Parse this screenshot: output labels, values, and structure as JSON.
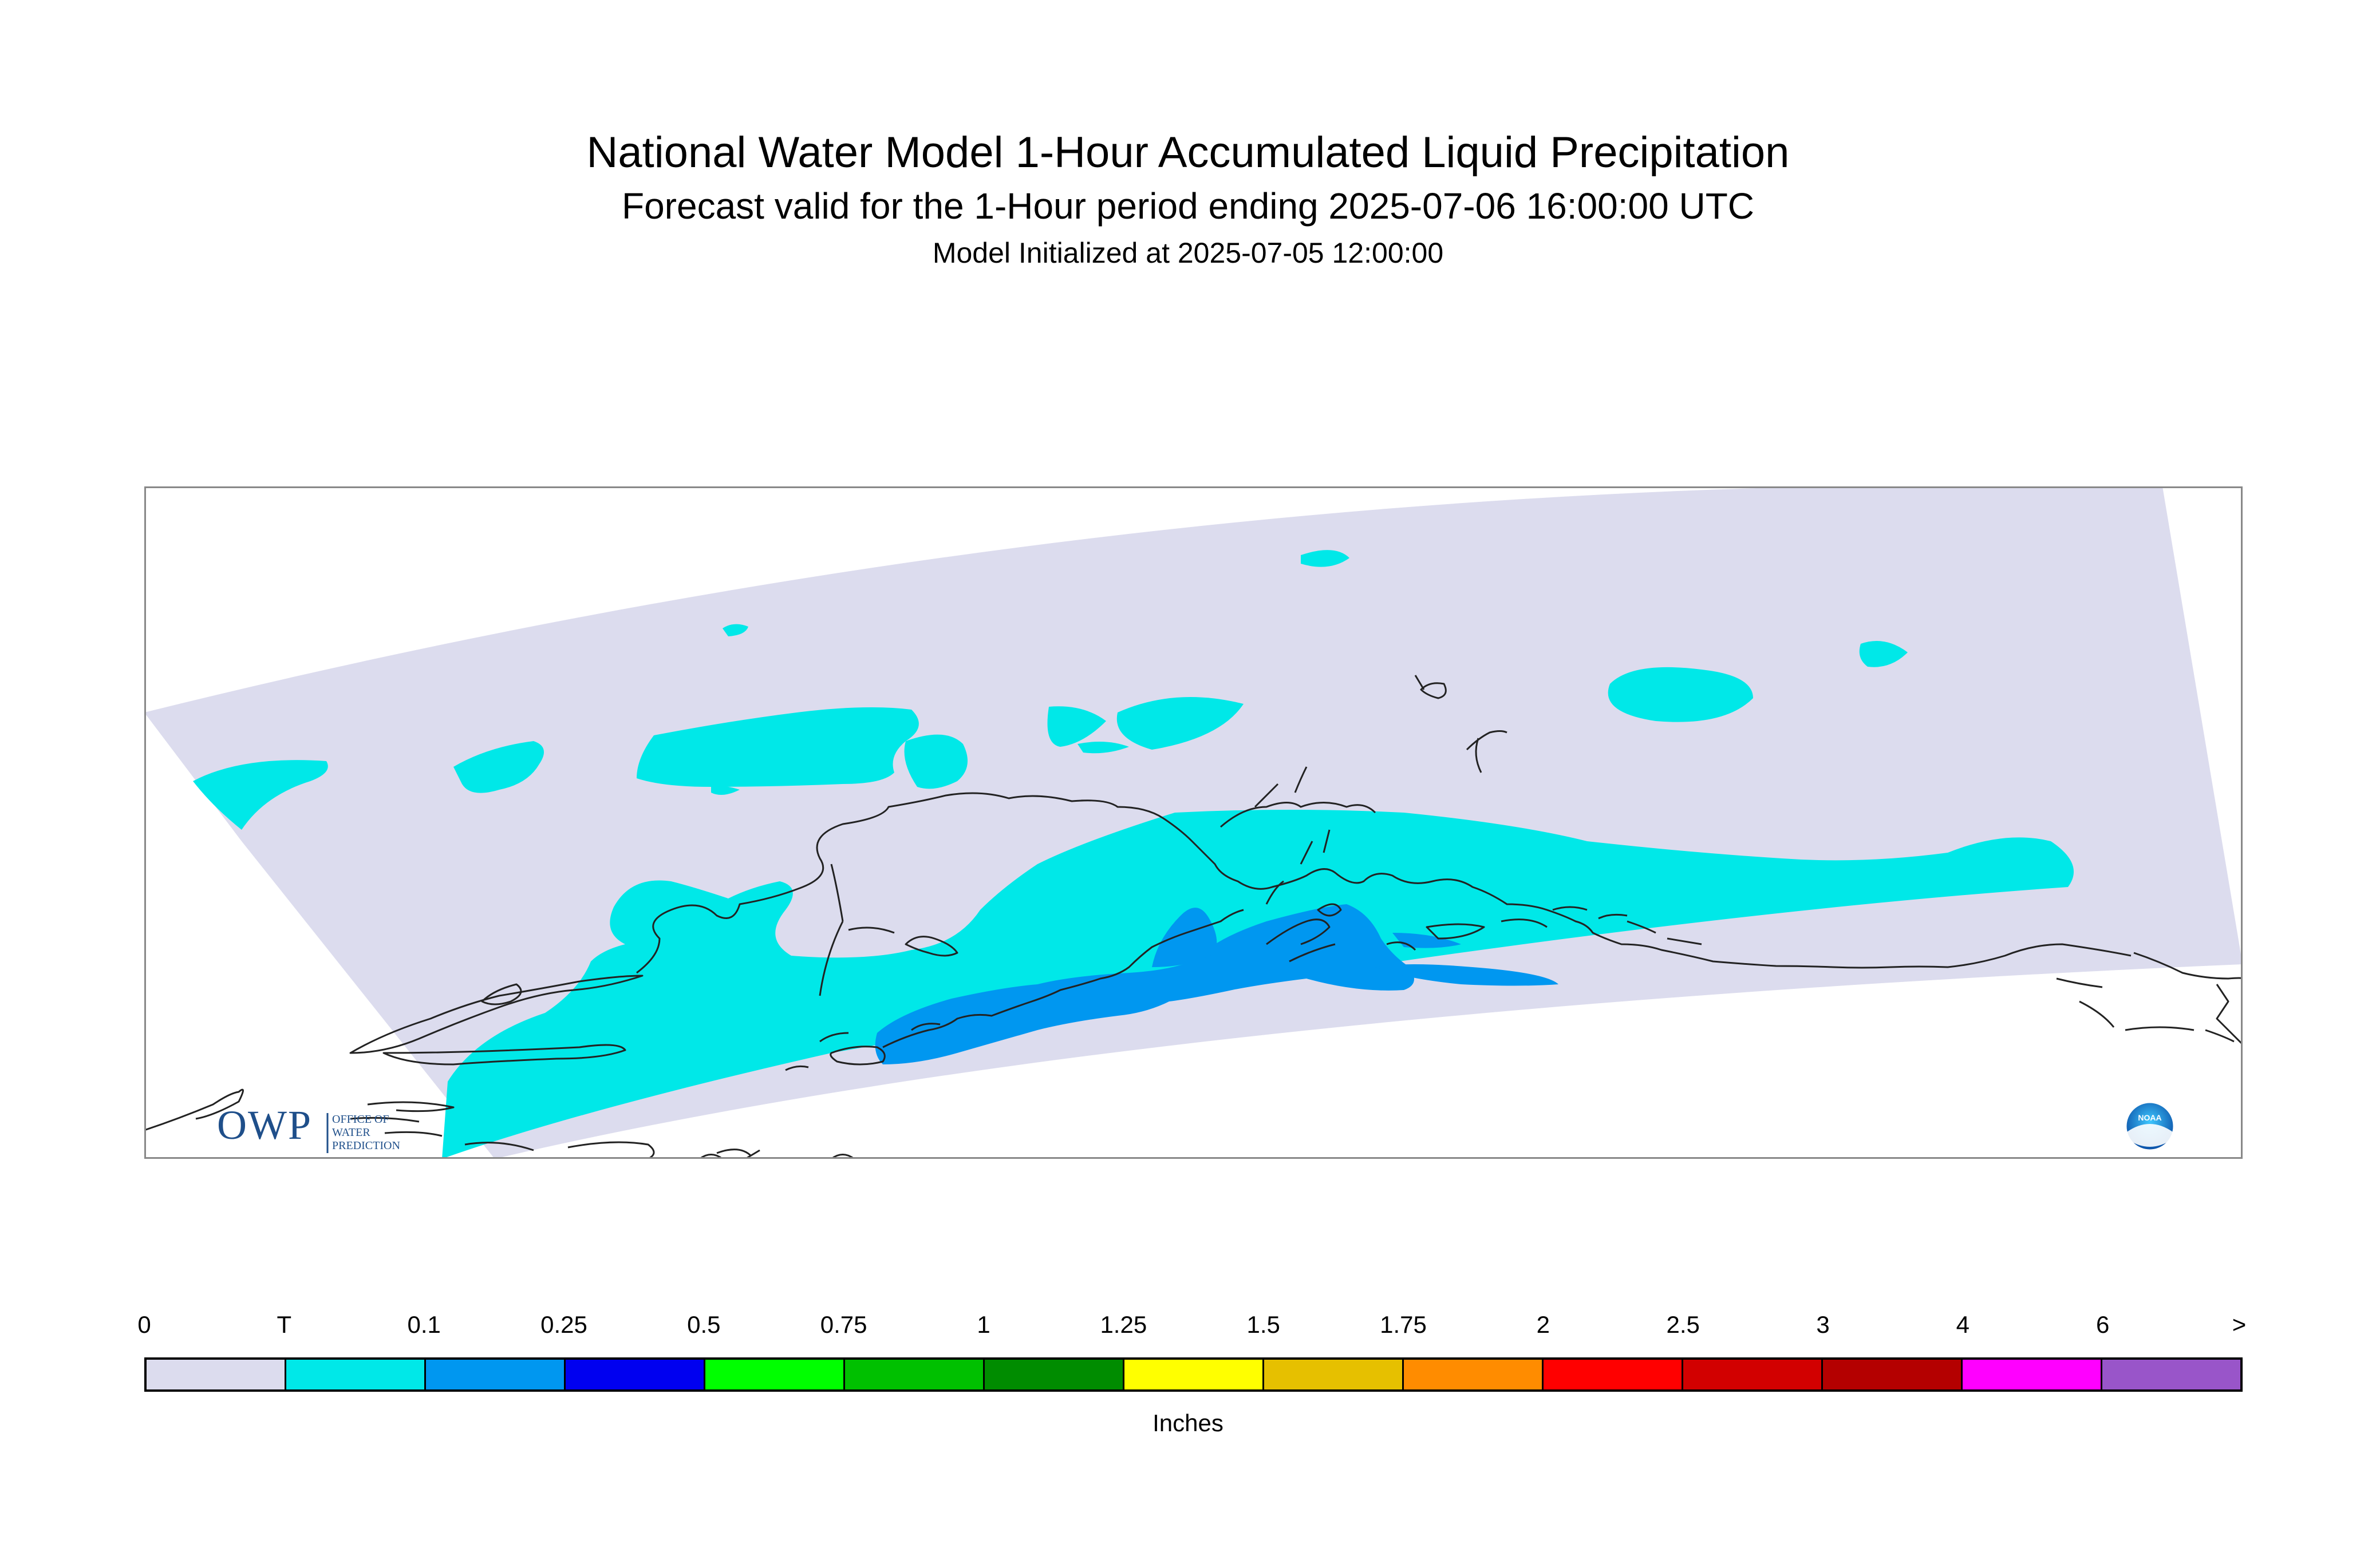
{
  "title": "National Water Model 1-Hour Accumulated Liquid Precipitation",
  "subtitle": "Forecast valid for the 1-Hour period ending 2025-07-06 16:00:00 UTC",
  "init_line": "Model Initialized at 2025-07-05 12:00:00",
  "logo_owp": {
    "main": "OWP",
    "line1": "OFFICE OF",
    "line2": "WATER",
    "line3": "PREDICTION"
  },
  "logo_noaa": "NOAA",
  "legend": {
    "units": "Inches",
    "labels": [
      "0",
      "T",
      "0.1",
      "0.25",
      "0.5",
      "0.75",
      "1",
      "1.25",
      "1.5",
      "1.75",
      "2",
      "2.5",
      "3",
      "4",
      "6",
      ">"
    ],
    "colors": [
      "#dcdcee",
      "#00e8e8",
      "#0097f0",
      "#0000f0",
      "#00ff00",
      "#00c000",
      "#008c00",
      "#ffff00",
      "#e6c000",
      "#ff8c00",
      "#ff0000",
      "#d20000",
      "#b40000",
      "#ff00ff",
      "#9955c9"
    ]
  },
  "colors": {
    "no_precip": "#dcdcee",
    "trace": "#00e8e8",
    "light": "#0097f0",
    "coastline": "#222222",
    "frame": "#888888"
  }
}
